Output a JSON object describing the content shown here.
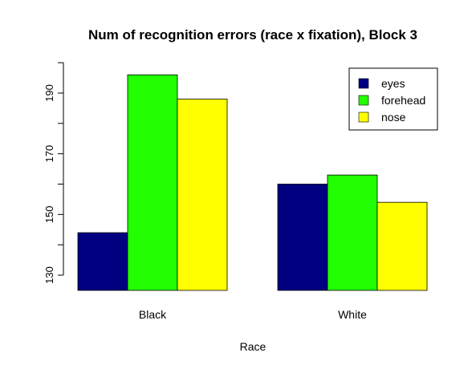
{
  "chart_data": {
    "type": "bar",
    "title": "Num of recognition errors (race x fixation), Block 3",
    "xlabel": "Race",
    "ylabel": "",
    "categories": [
      "Black",
      "White"
    ],
    "series": [
      {
        "name": "eyes",
        "color": "#000080",
        "values": [
          144,
          160
        ]
      },
      {
        "name": "forehead",
        "color": "#22ff00",
        "values": [
          196,
          163
        ]
      },
      {
        "name": "nose",
        "color": "#ffff00",
        "values": [
          188,
          154
        ]
      }
    ],
    "ylim": [
      125,
      200
    ],
    "yticks": [
      130,
      150,
      170,
      190
    ],
    "grid": false,
    "legend_position": "top-right"
  }
}
